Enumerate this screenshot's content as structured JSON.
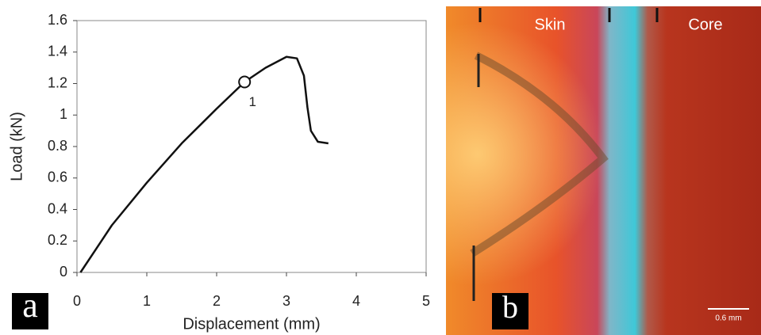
{
  "chart_data": {
    "type": "line",
    "panel_label": "a",
    "xlabel": "Displacement (mm)",
    "ylabel": "Load (kN)",
    "x": [
      0.05,
      0.5,
      1,
      1.5,
      2,
      2.4,
      2.7,
      3,
      3.15,
      3.25,
      3.3,
      3.35,
      3.45,
      3.6
    ],
    "values": [
      0,
      0.3,
      0.57,
      0.82,
      1.04,
      1.21,
      1.3,
      1.37,
      1.36,
      1.25,
      1.05,
      0.9,
      0.83,
      0.82
    ],
    "color": "#111111",
    "xlim": [
      0,
      5
    ],
    "xticks": [
      0,
      1,
      2,
      3,
      4,
      5
    ],
    "ylim": [
      0,
      1.6
    ],
    "yticks": [
      0,
      0.2,
      0.4,
      0.6,
      0.8,
      1,
      1.2,
      1.4,
      1.6
    ],
    "annotations": [
      {
        "x": 2.4,
        "y": 1.21,
        "text": "1"
      }
    ]
  },
  "image_panel": {
    "panel_label": "b",
    "regions": [
      "Skin",
      "Core"
    ],
    "scale_bar": "0.6 mm"
  }
}
